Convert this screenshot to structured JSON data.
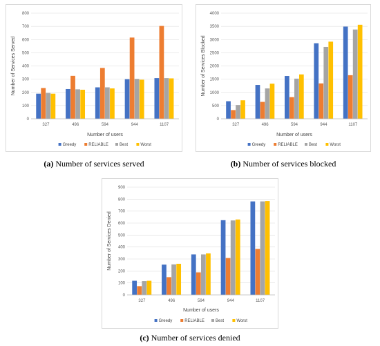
{
  "colors": {
    "greedy": "#4472c4",
    "reliable": "#ed7d31",
    "best": "#a5a5a5",
    "worst": "#ffc000"
  },
  "captions": [
    {
      "tag": "(a)",
      "text": "Number of services served"
    },
    {
      "tag": "(b)",
      "text": "Number of services blocked"
    },
    {
      "tag": "(c)",
      "text": "Number of services denied"
    }
  ],
  "chart_data": [
    {
      "type": "bar",
      "categories": [
        "327",
        "496",
        "594",
        "944",
        "1107"
      ],
      "ylabel": "Number of Services Served",
      "xlabel": "Number of users",
      "ylim": [
        0,
        800
      ],
      "yticks": [
        0,
        100,
        200,
        300,
        400,
        500,
        600,
        700,
        800
      ],
      "legend": "bottom",
      "series": [
        {
          "name": "Greedy",
          "values": [
            190,
            225,
            238,
            300,
            308
          ]
        },
        {
          "name": "RELIABLE",
          "values": [
            233,
            325,
            385,
            615,
            703
          ]
        },
        {
          "name": "Best",
          "values": [
            195,
            223,
            238,
            302,
            308
          ]
        },
        {
          "name": "Worst",
          "values": [
            190,
            220,
            230,
            296,
            306
          ]
        }
      ]
    },
    {
      "type": "bar",
      "categories": [
        "327",
        "496",
        "594",
        "944",
        "1107"
      ],
      "ylabel": "Number of Services Blocked",
      "xlabel": "Number of users",
      "ylim": [
        0,
        4000
      ],
      "yticks": [
        0,
        500,
        1000,
        1500,
        2000,
        2500,
        3000,
        3500,
        4000
      ],
      "legend": "bottom",
      "series": [
        {
          "name": "Greedy",
          "values": [
            665,
            1280,
            1620,
            2860,
            3490
          ]
        },
        {
          "name": "RELIABLE",
          "values": [
            330,
            640,
            820,
            1340,
            1650
          ]
        },
        {
          "name": "Best",
          "values": [
            520,
            1150,
            1520,
            2720,
            3380
          ]
        },
        {
          "name": "Worst",
          "values": [
            700,
            1330,
            1680,
            2920,
            3560
          ]
        }
      ]
    },
    {
      "type": "bar",
      "categories": [
        "327",
        "496",
        "594",
        "944",
        "1107"
      ],
      "ylabel": "Number of Services Denied",
      "xlabel": "Number of users",
      "ylim": [
        0,
        900
      ],
      "yticks": [
        0,
        100,
        200,
        300,
        400,
        500,
        600,
        700,
        800,
        900
      ],
      "legend": "bottom",
      "series": [
        {
          "name": "Greedy",
          "values": [
            118,
            253,
            338,
            624,
            781
          ]
        },
        {
          "name": "RELIABLE",
          "values": [
            73,
            148,
            188,
            308,
            384
          ]
        },
        {
          "name": "Best",
          "values": [
            115,
            255,
            338,
            622,
            781
          ]
        },
        {
          "name": "Worst",
          "values": [
            118,
            260,
            347,
            630,
            784
          ]
        }
      ]
    }
  ]
}
